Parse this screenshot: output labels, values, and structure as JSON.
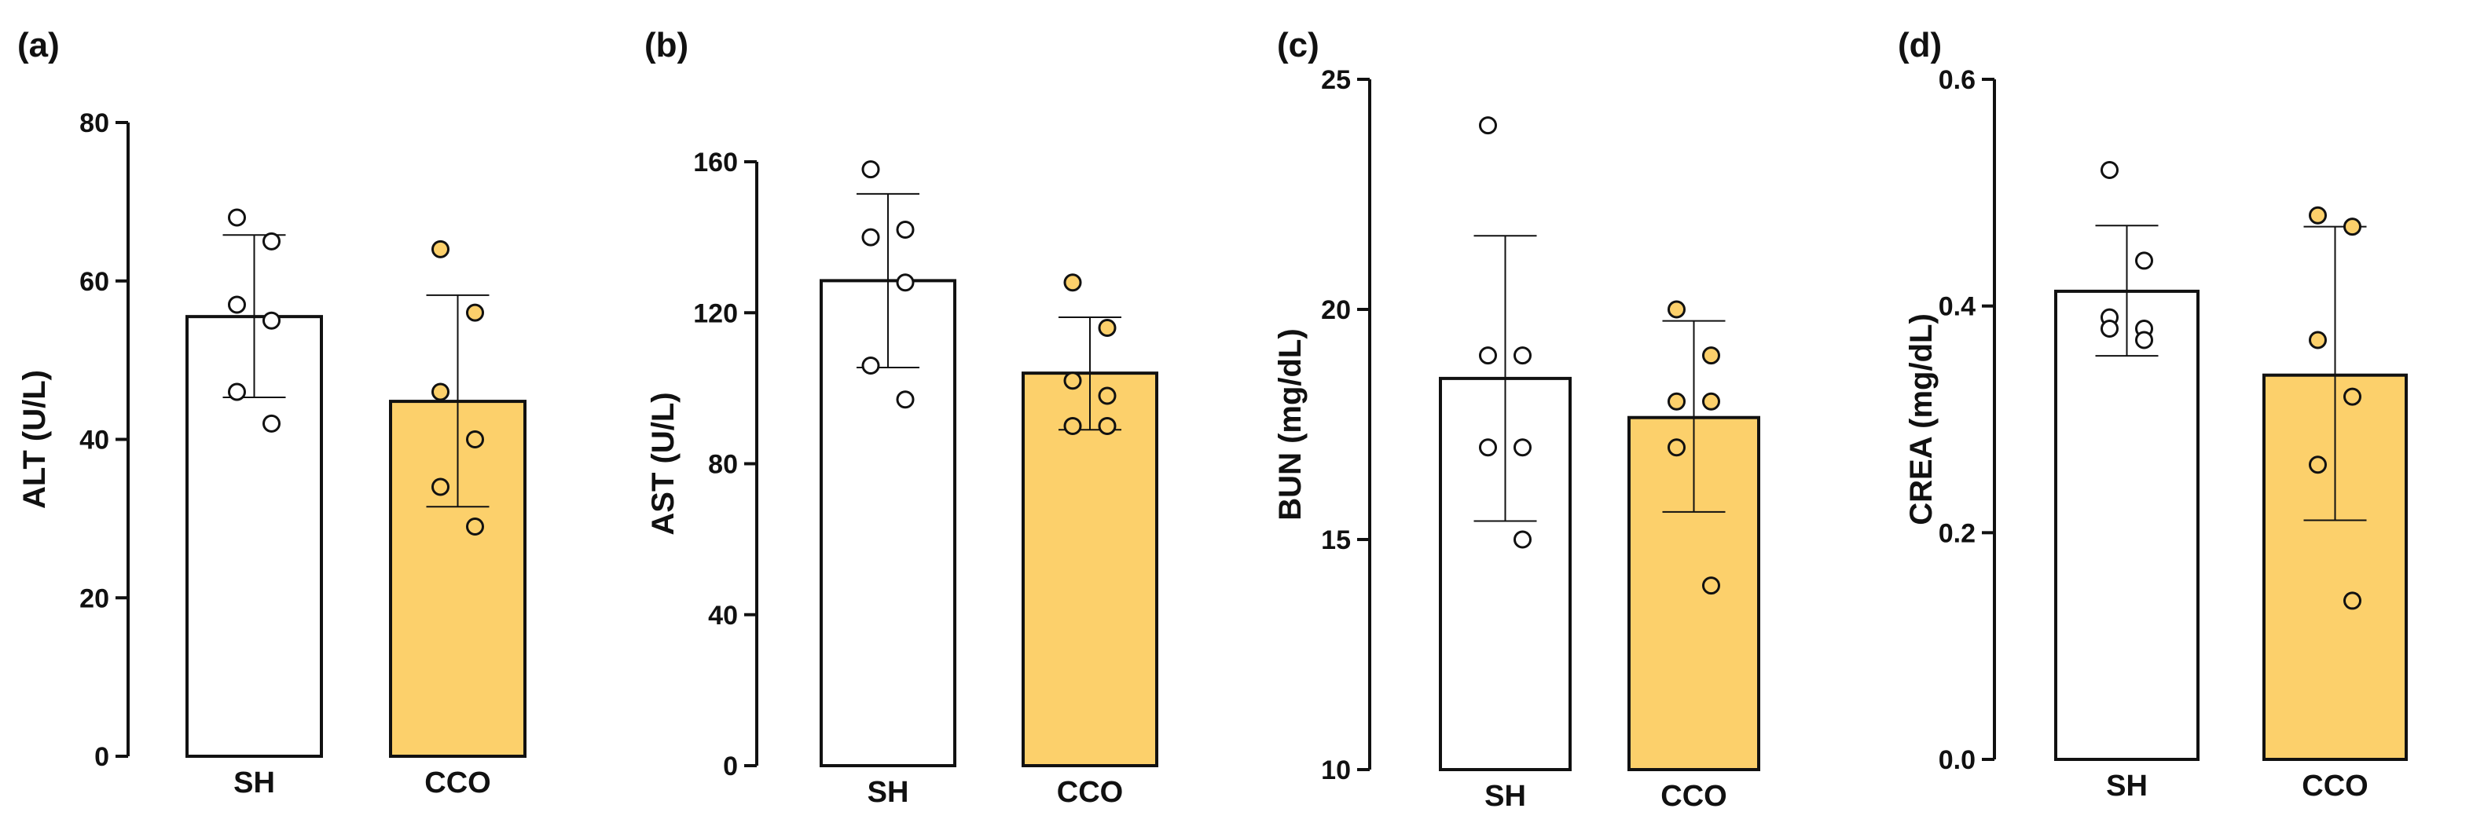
{
  "chart_data": [
    {
      "panel": "(a)",
      "type": "bar",
      "ylabel": "ALT (U/L)",
      "ylim": [
        0,
        80
      ],
      "yticks": [
        0,
        20,
        40,
        60,
        80
      ],
      "ytick_labels": [
        "0",
        "20",
        "40",
        "60",
        "80"
      ],
      "categories": [
        "SH",
        "CCO"
      ],
      "series": [
        {
          "name": "SH",
          "mean": 55.5,
          "sd_low": 45.3,
          "sd_high": 65.8,
          "points": [
            68,
            65,
            57,
            55,
            46,
            42
          ],
          "fill": "#ffffff"
        },
        {
          "name": "CCO",
          "mean": 44.8,
          "sd_low": 31.5,
          "sd_high": 58.2,
          "points": [
            64,
            56,
            46,
            40,
            34,
            29
          ],
          "fill": "#fcd06b"
        }
      ]
    },
    {
      "panel": "(b)",
      "type": "bar",
      "ylabel": "AST (U/L)",
      "ylim": [
        0,
        160
      ],
      "yticks": [
        0,
        40,
        80,
        120,
        160
      ],
      "ytick_labels": [
        "0",
        "40",
        "80",
        "120",
        "160"
      ],
      "categories": [
        "SH",
        "CCO"
      ],
      "series": [
        {
          "name": "SH",
          "mean": 128.5,
          "sd_low": 105.5,
          "sd_high": 151.5,
          "points": [
            158,
            142,
            140,
            128,
            106,
            97
          ],
          "fill": "#ffffff"
        },
        {
          "name": "CCO",
          "mean": 104,
          "sd_low": 89,
          "sd_high": 118.8,
          "points": [
            128,
            116,
            102,
            98,
            90,
            90
          ],
          "fill": "#fcd06b"
        }
      ]
    },
    {
      "panel": "(c)",
      "type": "bar",
      "ylabel": "BUN (mg/dL)",
      "ylim": [
        10,
        25
      ],
      "yticks": [
        10,
        15,
        20,
        25
      ],
      "ytick_labels": [
        "10",
        "15",
        "20",
        "25"
      ],
      "categories": [
        "SH",
        "CCO"
      ],
      "series": [
        {
          "name": "SH",
          "mean": 18.5,
          "sd_low": 15.4,
          "sd_high": 21.6,
          "points": [
            24,
            19,
            19,
            17,
            17,
            15
          ],
          "fill": "#ffffff"
        },
        {
          "name": "CCO",
          "mean": 17.65,
          "sd_low": 15.6,
          "sd_high": 19.75,
          "points": [
            20,
            19,
            18,
            18,
            17,
            14
          ],
          "fill": "#fcd06b"
        }
      ]
    },
    {
      "panel": "(d)",
      "type": "bar",
      "ylabel": "CREA (mg/dL)",
      "ylim": [
        0,
        0.6
      ],
      "yticks": [
        0,
        0.2,
        0.4,
        0.6
      ],
      "ytick_labels": [
        "0.0",
        "0.2",
        "0.4",
        "0.6"
      ],
      "categories": [
        "SH",
        "CCO"
      ],
      "series": [
        {
          "name": "SH",
          "mean": 0.413,
          "sd_low": 0.356,
          "sd_high": 0.471,
          "points": [
            0.52,
            0.44,
            0.39,
            0.38,
            0.38,
            0.37
          ],
          "fill": "#ffffff"
        },
        {
          "name": "CCO",
          "mean": 0.339,
          "sd_low": 0.211,
          "sd_high": 0.47,
          "points": [
            0.48,
            0.47,
            0.37,
            0.32,
            0.26,
            0.14
          ],
          "fill": "#fcd06b"
        }
      ]
    }
  ]
}
